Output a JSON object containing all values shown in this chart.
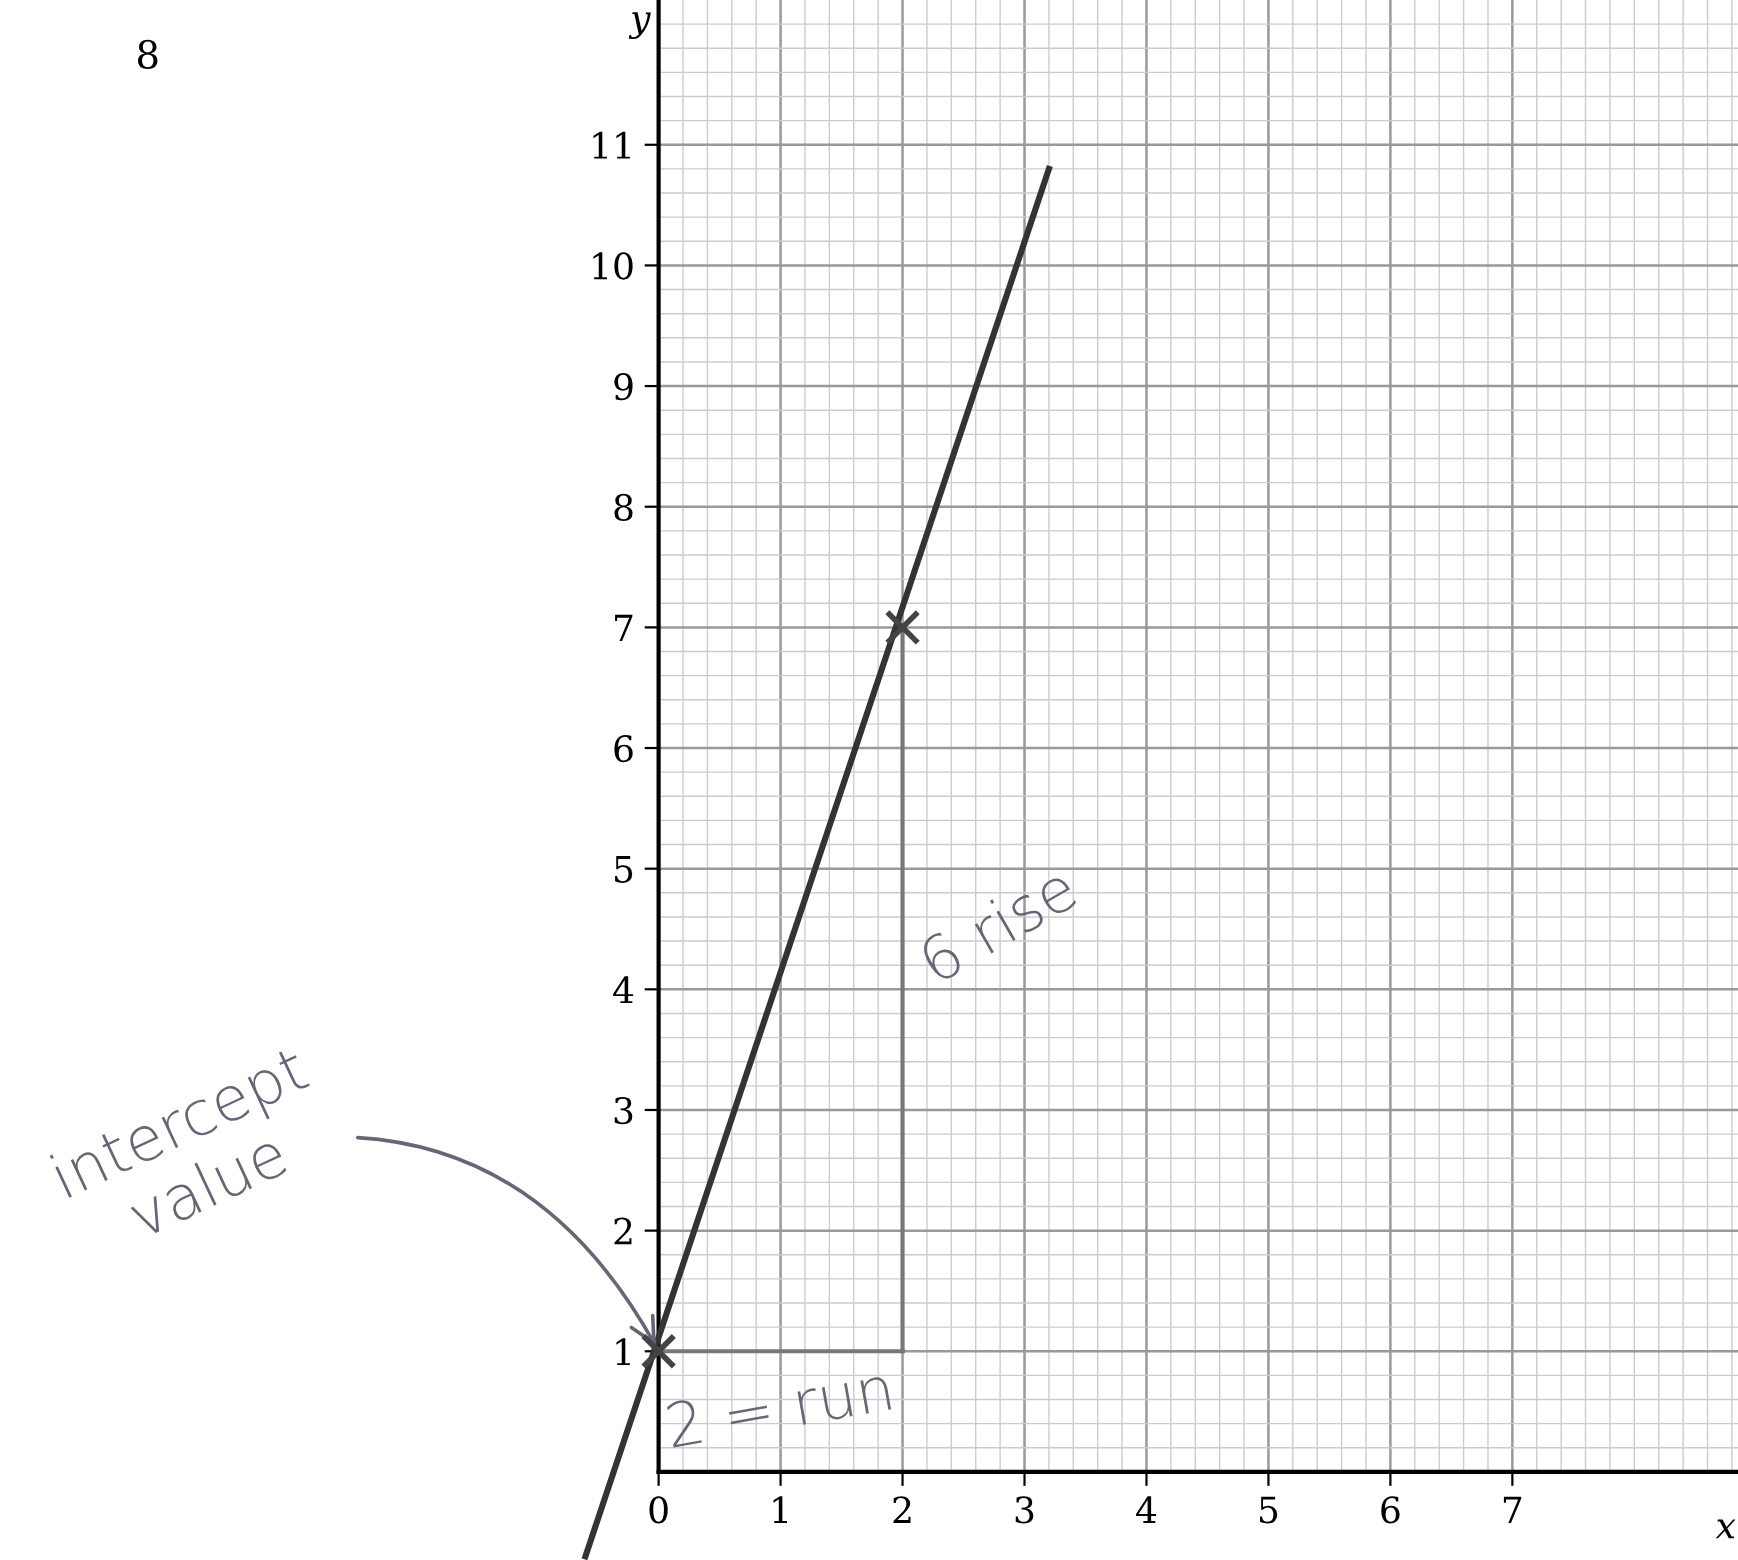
{
  "chart_data": {
    "type": "line",
    "xlabel": "x",
    "ylabel": "y",
    "xlim": [
      -5.4,
      8.85
    ],
    "ylim": [
      -0.73,
      12.2
    ],
    "xticks": [
      0,
      1,
      2,
      3,
      4,
      5,
      6,
      7
    ],
    "yticks": [
      1,
      2,
      3,
      4,
      5,
      6,
      7,
      8,
      9,
      10,
      11
    ],
    "grid": true,
    "series": [
      {
        "x": [
          -0.6,
          3.2
        ],
        "values": [
          -0.7,
          10.8
        ],
        "color": "#333333",
        "marker": "none"
      },
      {
        "type": "scatter",
        "x": [
          0,
          2
        ],
        "values": [
          1,
          7
        ],
        "color": "#444444",
        "marker": "cross"
      },
      {
        "x": [
          0,
          2
        ],
        "values": [
          1,
          1
        ],
        "color": "#777777",
        "marker": "none"
      },
      {
        "x": [
          2,
          2
        ],
        "values": [
          1,
          7
        ],
        "color": "#777777",
        "marker": "none"
      }
    ],
    "annotations": [
      "8",
      {
        "text": "intercept\nvalue",
        "x": 0,
        "y": 1
      },
      {
        "text": "6 rise",
        "x": 2,
        "y": 4.5
      },
      {
        "text": "2 = run",
        "x": 1,
        "y": 1
      }
    ]
  }
}
